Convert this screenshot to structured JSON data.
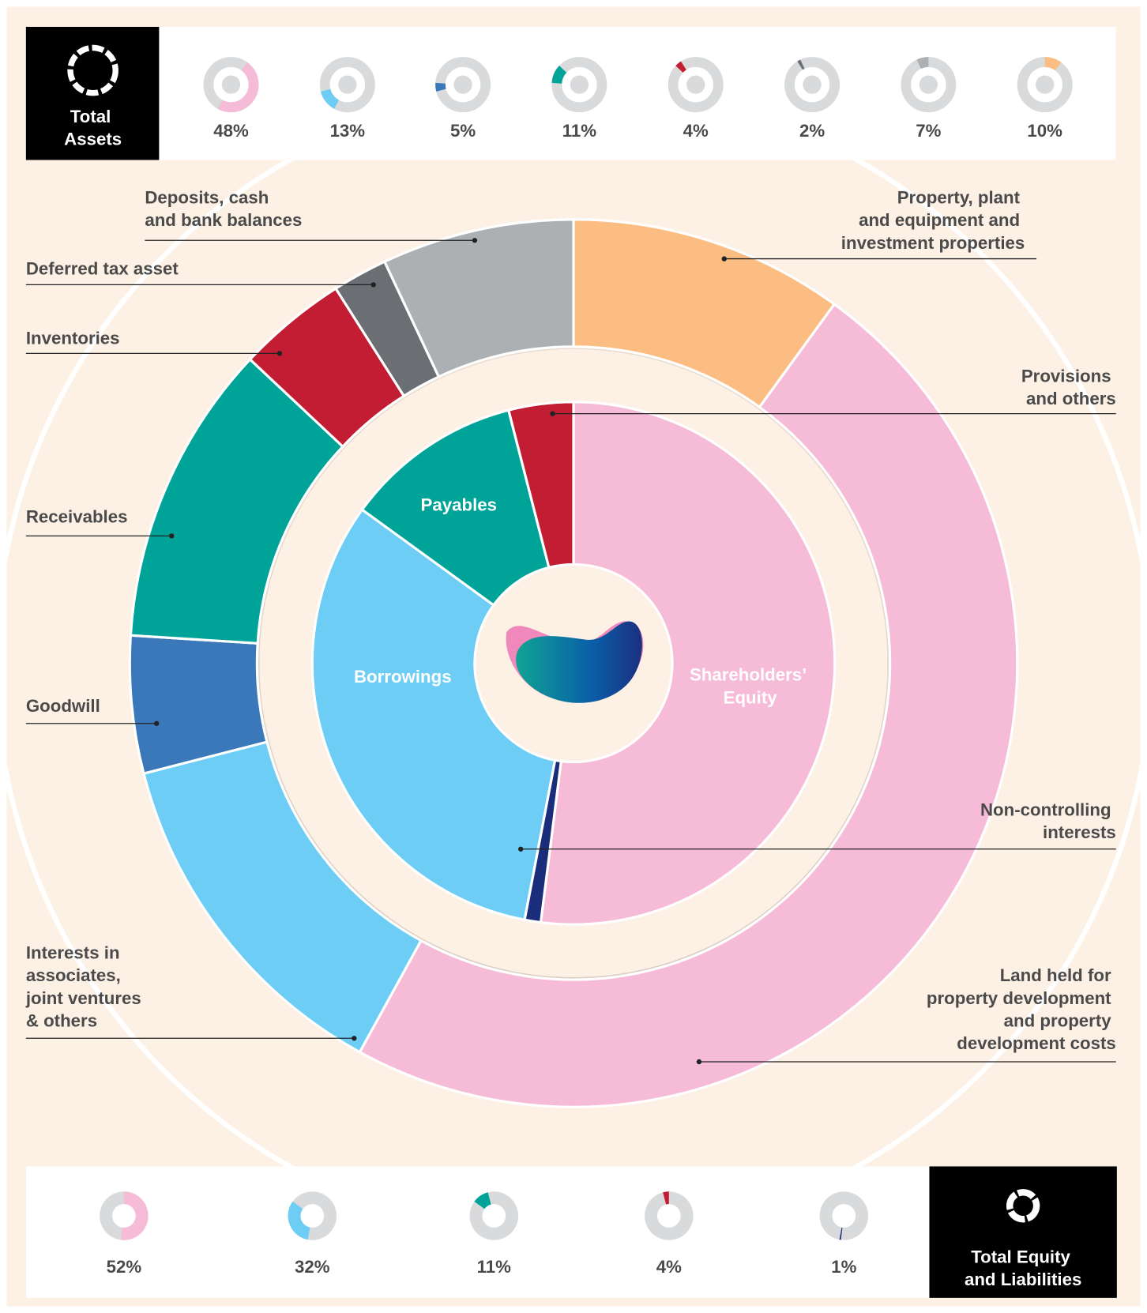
{
  "chart_data": [
    {
      "type": "donut",
      "title": "Total Assets",
      "categories": [
        "Land held for property development and property development costs",
        "Interests in associates, joint ventures & others",
        "Goodwill",
        "Receivables",
        "Inventories",
        "Deferred tax asset",
        "Deposits, cash and bank balances",
        "Property, plant and equipment and investment properties"
      ],
      "values": [
        48,
        13,
        5,
        11,
        4,
        2,
        7,
        10
      ],
      "value_labels": [
        "48%",
        "13%",
        "5%",
        "11%",
        "4%",
        "2%",
        "7%",
        "10%"
      ],
      "colors": [
        "#f6bbd6",
        "#6dcdf5",
        "#3a78b9",
        "#00a398",
        "#c21d32",
        "#6b6e72",
        "#adb0b3",
        "#fbbd82"
      ]
    },
    {
      "type": "donut",
      "title": "Total Equity and Liabilities",
      "categories": [
        "Shareholders’ Equity",
        "Borrowings",
        "Payables",
        "Provisions and others",
        "Non-controlling interests"
      ],
      "values": [
        52,
        32,
        11,
        4,
        1
      ],
      "value_labels": [
        "52%",
        "32%",
        "11%",
        "4%",
        "1%"
      ],
      "colors": [
        "#f6bbd6",
        "#6dcdf5",
        "#00a398",
        "#c21d32",
        "#1a2d7a"
      ]
    }
  ]
}
